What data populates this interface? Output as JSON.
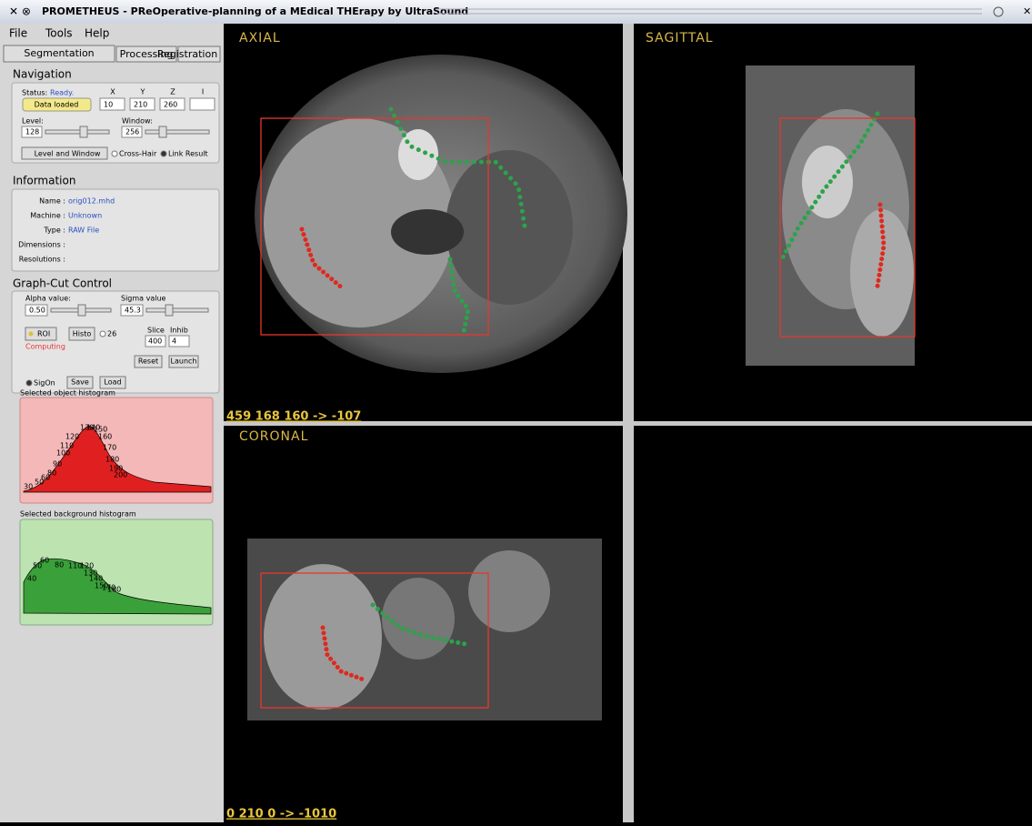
{
  "window": {
    "title": "PROMETHEUS - PReOperative-planning of a MEdical THErapy by UltraSound"
  },
  "menu": [
    "File",
    "Tools",
    "Help"
  ],
  "tabs": [
    "Segmentation",
    "Processing",
    "Registration"
  ],
  "navigation": {
    "header": "Navigation",
    "status_label": "Status:",
    "status": "Ready.",
    "data_button": "Data loaded",
    "axes": [
      "X",
      "Y",
      "Z",
      "I"
    ],
    "coords": [
      "10",
      "210",
      "260",
      ""
    ],
    "level_label": "Level:",
    "level": "128",
    "window_label": "Window:",
    "window": "256",
    "level_window_button": "Level and Window",
    "cross_hair": "Cross-Hair",
    "link_result": "Link Result"
  },
  "information": {
    "header": "Information",
    "rows": [
      [
        "Name :",
        "orig012.mhd"
      ],
      [
        "Machine :",
        "Unknown"
      ],
      [
        "Type :",
        "RAW File"
      ],
      [
        "Dimensions :",
        ""
      ],
      [
        "Resolutions :",
        ""
      ]
    ]
  },
  "graph_cut": {
    "header": "Graph-Cut Control",
    "alpha_label": "Alpha value:",
    "alpha": "0.50",
    "sigma_label": "Sigma value",
    "sigma": "45.3",
    "roi": "ROI",
    "histo": "Histo",
    "radio_26": "26",
    "computing": "Computing",
    "slice_label": "Slice",
    "slice": "400",
    "inhib_label": "Inhib",
    "inhib": "4",
    "reset": "Reset",
    "launch": "Launch",
    "sigon": "SigOn",
    "save": "Save",
    "load": "Load"
  },
  "histograms": [
    {
      "title": "Selected object histogram",
      "labels": [
        "30",
        "50",
        "60",
        "80",
        "90",
        "100",
        "110",
        "120",
        "130",
        "140",
        "150",
        "160",
        "170",
        "180",
        "190",
        "200"
      ]
    },
    {
      "title": "Selected background histogram",
      "labels": [
        "40",
        "50",
        "60",
        "80",
        "110",
        "120",
        "130",
        "140",
        "150",
        "170",
        "180"
      ]
    }
  ],
  "viewports": [
    {
      "label": "AXIAL",
      "readout": "459 168 160 -> -107"
    },
    {
      "label": "SAGITTAL"
    },
    {
      "label": "CORONAL",
      "readout": "0 210 0 -> -1010"
    }
  ]
}
